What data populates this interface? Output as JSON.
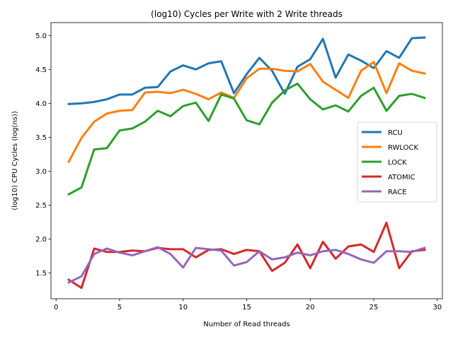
{
  "chart_data": {
    "type": "line",
    "title": "(log10) Cycles per Write with 2 Write threads",
    "xlabel": "Number of Read threads",
    "ylabel": "(log10) CPU Cycles (log(ns))",
    "xlim": [
      -0.4,
      30.4
    ],
    "ylim": [
      1.12,
      5.19
    ],
    "x_ticks": [
      0,
      5,
      10,
      15,
      20,
      25,
      30
    ],
    "y_ticks": [
      1.5,
      2.0,
      2.5,
      3.0,
      3.5,
      4.0,
      4.5,
      5.0
    ],
    "x_tick_labels": [
      "0",
      "5",
      "10",
      "15",
      "20",
      "25",
      "30"
    ],
    "y_tick_labels": [
      "1.5",
      "2.0",
      "2.5",
      "3.0",
      "3.5",
      "4.0",
      "4.5",
      "5.0"
    ],
    "grid": false,
    "legend_position": "center-right",
    "x": [
      1,
      2,
      3,
      4,
      5,
      6,
      7,
      8,
      9,
      10,
      11,
      12,
      13,
      14,
      15,
      16,
      17,
      18,
      19,
      20,
      21,
      22,
      23,
      24,
      25,
      26,
      27,
      28,
      29
    ],
    "series": [
      {
        "name": "RCU",
        "color": "#1f77b4",
        "values": [
          3.99,
          4.0,
          4.02,
          4.06,
          4.13,
          4.13,
          4.23,
          4.24,
          4.47,
          4.56,
          4.5,
          4.59,
          4.62,
          4.15,
          4.43,
          4.67,
          4.48,
          4.14,
          4.54,
          4.65,
          4.95,
          4.38,
          4.72,
          4.63,
          4.52,
          4.77,
          4.67,
          4.96,
          4.97
        ]
      },
      {
        "name": "RWLOCK",
        "color": "#ff7f0e",
        "values": [
          3.14,
          3.49,
          3.73,
          3.85,
          3.89,
          3.9,
          4.16,
          4.17,
          4.15,
          4.2,
          4.14,
          4.06,
          4.16,
          4.08,
          4.37,
          4.51,
          4.51,
          4.48,
          4.47,
          4.58,
          4.32,
          4.2,
          4.08,
          4.48,
          4.61,
          4.15,
          4.59,
          4.48,
          4.44
        ]
      },
      {
        "name": "LOCK",
        "color": "#2ca02c",
        "values": [
          2.66,
          2.76,
          3.32,
          3.34,
          3.6,
          3.63,
          3.73,
          3.89,
          3.81,
          3.96,
          4.01,
          3.74,
          4.13,
          4.07,
          3.75,
          3.69,
          4.01,
          4.19,
          4.29,
          4.06,
          3.91,
          3.97,
          3.88,
          4.11,
          4.23,
          3.89,
          4.11,
          4.14,
          4.08
        ]
      },
      {
        "name": "ATOMIC",
        "color": "#d62728",
        "values": [
          1.4,
          1.28,
          1.86,
          1.81,
          1.81,
          1.83,
          1.82,
          1.87,
          1.85,
          1.85,
          1.73,
          1.84,
          1.85,
          1.78,
          1.84,
          1.82,
          1.53,
          1.65,
          1.92,
          1.57,
          1.96,
          1.71,
          1.89,
          1.92,
          1.81,
          2.24,
          1.57,
          1.82,
          1.84
        ]
      },
      {
        "name": "RACE",
        "color": "#9467bd",
        "values": [
          1.36,
          1.45,
          1.78,
          1.86,
          1.8,
          1.76,
          1.82,
          1.88,
          1.78,
          1.58,
          1.87,
          1.85,
          1.83,
          1.61,
          1.66,
          1.82,
          1.7,
          1.73,
          1.8,
          1.76,
          1.82,
          1.84,
          1.78,
          1.7,
          1.65,
          1.82,
          1.82,
          1.81,
          1.87
        ]
      }
    ]
  }
}
